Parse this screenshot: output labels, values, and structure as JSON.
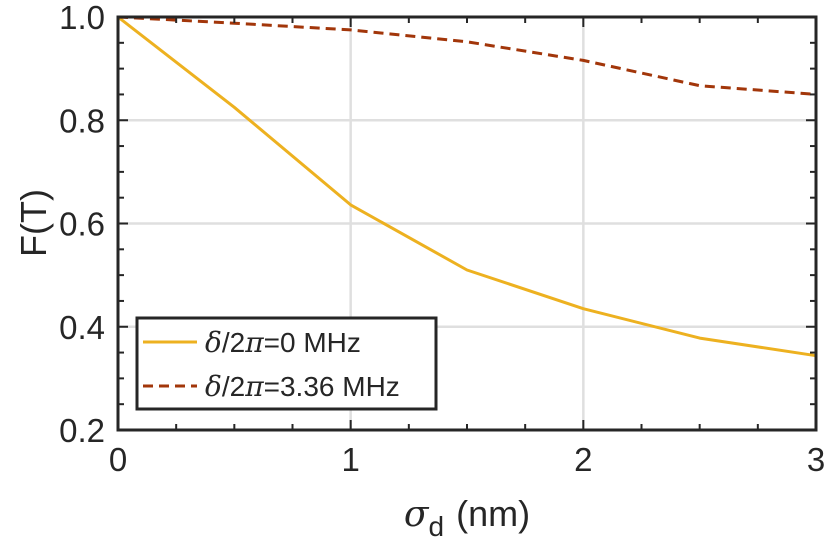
{
  "chart_data": {
    "type": "line",
    "xlabel": "σ",
    "xlabel_sub": "d",
    "xlabel_unit": "(nm)",
    "ylabel": "F(T)",
    "xlim": [
      0,
      3
    ],
    "ylim": [
      0.2,
      1.0
    ],
    "xticks": [
      0,
      1,
      2,
      3
    ],
    "xtick_labels": [
      "0",
      "1",
      "2",
      "3"
    ],
    "yticks": [
      0.2,
      0.4,
      0.6,
      0.8,
      1.0
    ],
    "ytick_labels": [
      "0.2",
      "0.4",
      "0.6",
      "0.8",
      "1.0"
    ],
    "grid": true,
    "legend_position": "bottom-left",
    "x": [
      0,
      0.5,
      1,
      1.5,
      2,
      2.5,
      3
    ],
    "series": [
      {
        "name": "δ/2π=0 MHz",
        "name_parts": [
          "δ",
          "/2",
          "π",
          "=0 MHz"
        ],
        "style": "solid",
        "color": "#EDB120",
        "values": [
          1.0,
          0.825,
          0.636,
          0.51,
          0.435,
          0.378,
          0.344
        ]
      },
      {
        "name": "δ/2π=3.36 MHz",
        "name_parts": [
          "δ",
          "/2",
          "π",
          "=3.36 MHz"
        ],
        "style": "dashed",
        "color": "#A2360A",
        "values": [
          1.0,
          0.988,
          0.975,
          0.952,
          0.916,
          0.867,
          0.85
        ]
      }
    ]
  }
}
